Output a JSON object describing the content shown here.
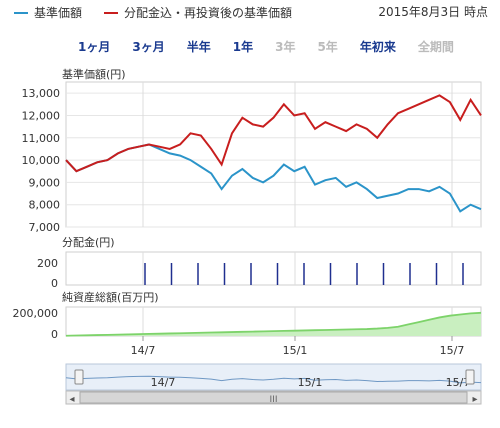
{
  "legend": [
    {
      "name": "基準価額",
      "color": "#2b94c9"
    },
    {
      "name": "分配金込・再投資後の基準価額",
      "color": "#c81e1e"
    }
  ],
  "date_label": "2015年8月3日 時点",
  "ranges": [
    {
      "label": "1ヶ月",
      "enabled": true
    },
    {
      "label": "3ヶ月",
      "enabled": true
    },
    {
      "label": "半年",
      "enabled": true
    },
    {
      "label": "1年",
      "enabled": true
    },
    {
      "label": "3年",
      "enabled": false
    },
    {
      "label": "5年",
      "enabled": false
    },
    {
      "label": "年初来",
      "enabled": true
    },
    {
      "label": "全期間",
      "enabled": false
    }
  ],
  "chart_data": [
    {
      "type": "line",
      "title": "基準価額(円)",
      "ylim": [
        7000,
        13500
      ],
      "yticks": [
        13000,
        12000,
        11000,
        10000,
        9000,
        8000,
        7000
      ],
      "ytick_labels": [
        "13,000",
        "12,000",
        "11,000",
        "10,000",
        "9,000",
        "8,000",
        "7,000"
      ],
      "x_start": "2014-03",
      "x_end": "2015-08",
      "xtick_labels": [
        "14/7",
        "15/1",
        "15/7"
      ],
      "series": [
        {
          "name": "基準価額",
          "color": "#2b94c9",
          "values": [
            10000,
            9500,
            9700,
            9900,
            10000,
            10300,
            10500,
            10600,
            10700,
            10500,
            10300,
            10200,
            10000,
            9700,
            9400,
            8700,
            9300,
            9600,
            9200,
            9000,
            9300,
            9800,
            9500,
            9700,
            8900,
            9100,
            9200,
            8800,
            9000,
            8700,
            8300,
            8400,
            8500,
            8700,
            8700,
            8600,
            8800,
            8500,
            7700,
            8000,
            7800
          ]
        },
        {
          "name": "分配金込・再投資後の基準価額",
          "color": "#c81e1e",
          "values": [
            10000,
            9500,
            9700,
            9900,
            10000,
            10300,
            10500,
            10600,
            10700,
            10600,
            10500,
            10700,
            11200,
            11100,
            10500,
            9800,
            11200,
            11900,
            11600,
            11500,
            11900,
            12500,
            12000,
            12100,
            11400,
            11700,
            11500,
            11300,
            11600,
            11400,
            11000,
            11600,
            12100,
            12300,
            12500,
            12700,
            12900,
            12600,
            11800,
            12700,
            12000
          ]
        }
      ]
    },
    {
      "type": "bar",
      "title": "分配金(円)",
      "ylim": [
        0,
        300
      ],
      "ytick_labels": [
        "200",
        "0"
      ],
      "categories": [
        "2014-07",
        "2014-08",
        "2014-09",
        "2014-10",
        "2014-11",
        "2014-12",
        "2015-01",
        "2015-02",
        "2015-03",
        "2015-04",
        "2015-05",
        "2015-06",
        "2015-07",
        "2015-08"
      ],
      "values": [
        200,
        200,
        200,
        200,
        200,
        200,
        200,
        200,
        200,
        200,
        200,
        200,
        200,
        200
      ]
    },
    {
      "type": "area",
      "title": "純資産総額(百万円)",
      "ylim": [
        0,
        250000
      ],
      "ytick_labels": [
        "200,000",
        "0"
      ],
      "color": "#7dd36a",
      "values": [
        2000,
        4000,
        6000,
        8000,
        10000,
        12000,
        14000,
        16000,
        18000,
        20000,
        22000,
        24000,
        26000,
        28000,
        30000,
        32000,
        34000,
        36000,
        38000,
        40000,
        42000,
        44000,
        46000,
        48000,
        50000,
        52000,
        54000,
        56000,
        58000,
        60000,
        64000,
        70000,
        80000,
        100000,
        120000,
        140000,
        160000,
        175000,
        185000,
        195000,
        200000
      ]
    }
  ],
  "navigator": {
    "xtick_labels": [
      "14/7",
      "15/1",
      "15/7"
    ],
    "scroll_grip": "III",
    "left_arrow": "◂",
    "right_arrow": "▸"
  }
}
